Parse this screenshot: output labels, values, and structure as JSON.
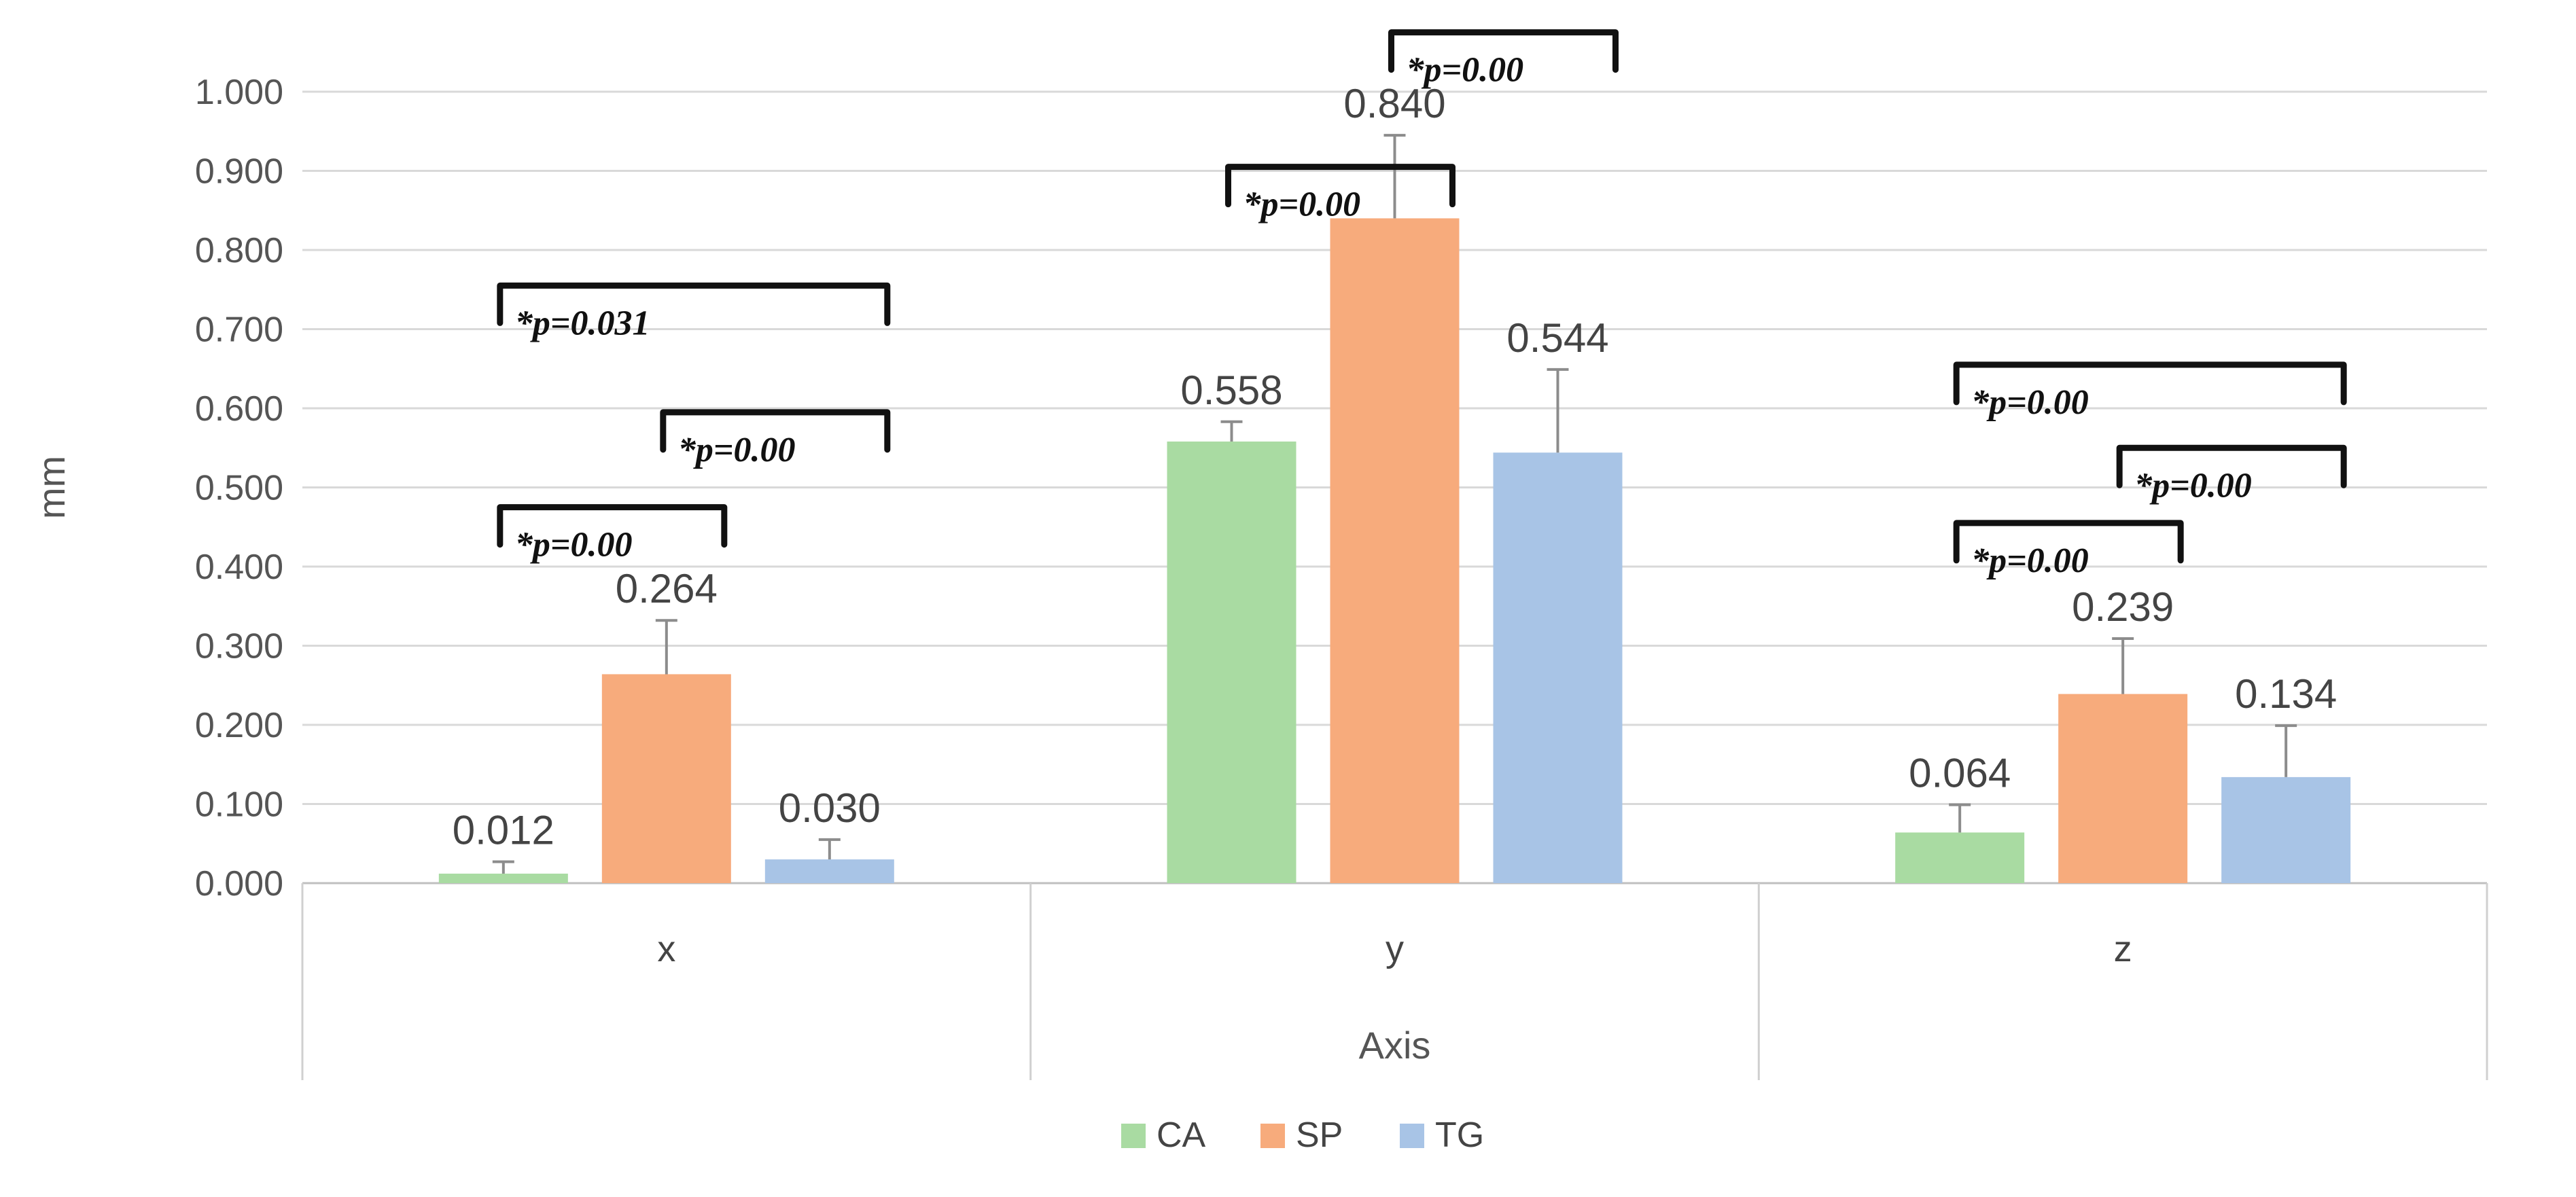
{
  "chart_data": {
    "type": "bar",
    "title": "",
    "xlabel": "Axis",
    "ylabel": "mm",
    "categories": [
      "x",
      "y",
      "z"
    ],
    "ylim": [
      0,
      1
    ],
    "ytick_step": 0.1,
    "ytick_labels": [
      "0.000",
      "0.100",
      "0.200",
      "0.300",
      "0.400",
      "0.500",
      "0.600",
      "0.700",
      "0.800",
      "0.900",
      "1.000"
    ],
    "grid": true,
    "legend_position": "bottom",
    "series": [
      {
        "name": "CA",
        "color": "#a9dba2",
        "values": [
          0.012,
          0.558,
          0.064
        ],
        "errors": [
          0.015,
          0.025,
          0.035
        ],
        "labels": [
          "0.012",
          "0.558",
          "0.064"
        ]
      },
      {
        "name": "SP",
        "color": "#f7ab7c",
        "values": [
          0.264,
          0.84,
          0.239
        ],
        "errors": [
          0.068,
          0.105,
          0.07
        ],
        "labels": [
          "0.264",
          "0.840",
          "0.239"
        ]
      },
      {
        "name": "TG",
        "color": "#a8c4e6",
        "values": [
          0.03,
          0.544,
          0.134
        ],
        "errors": [
          0.025,
          0.105,
          0.065
        ],
        "labels": [
          "0.030",
          "0.544",
          "0.134"
        ]
      }
    ],
    "annotations": [
      {
        "category": 0,
        "from_series": 0,
        "to_series": 2,
        "y": 0.755,
        "text": "*p=0.031"
      },
      {
        "category": 0,
        "from_series": 1,
        "to_series": 2,
        "y": 0.595,
        "text": "*p=0.00"
      },
      {
        "category": 0,
        "from_series": 0,
        "to_series": 1,
        "y": 0.475,
        "text": "*p=0.00"
      },
      {
        "category": 1,
        "from_series": 1,
        "to_series": 2,
        "y": 1.075,
        "text": "*p=0.00"
      },
      {
        "category": 1,
        "from_series": 0,
        "to_series": 1,
        "y": 0.905,
        "text": "*p=0.00"
      },
      {
        "category": 2,
        "from_series": 0,
        "to_series": 2,
        "y": 0.655,
        "text": "*p=0.00"
      },
      {
        "category": 2,
        "from_series": 1,
        "to_series": 2,
        "y": 0.55,
        "text": "*p=0.00"
      },
      {
        "category": 2,
        "from_series": 0,
        "to_series": 1,
        "y": 0.455,
        "text": "*p=0.00"
      }
    ]
  }
}
